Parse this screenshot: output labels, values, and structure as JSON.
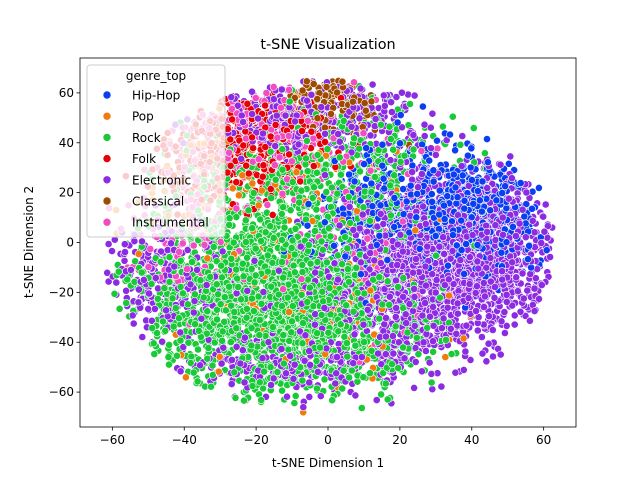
{
  "chart_data": {
    "type": "scatter",
    "title": "t-SNE Visualization",
    "xlabel": "t-SNE Dimension 1",
    "ylabel": "t-SNE Dimension 2",
    "xlim": [
      -69,
      69
    ],
    "ylim": [
      -74,
      74
    ],
    "xticks": [
      -60,
      -40,
      -20,
      0,
      20,
      40,
      60
    ],
    "yticks": [
      -60,
      -40,
      -20,
      0,
      20,
      40,
      60
    ],
    "legend": {
      "title": "genre_top",
      "placement": "top-left",
      "entries": [
        {
          "name": "Hip-Hop",
          "color": "#0b3ef2"
        },
        {
          "name": "Pop",
          "color": "#f07a0a"
        },
        {
          "name": "Rock",
          "color": "#1ac938"
        },
        {
          "name": "Folk",
          "color": "#e6000a"
        },
        {
          "name": "Electronic",
          "color": "#8b2be2"
        },
        {
          "name": "Classical",
          "color": "#9e4a00"
        },
        {
          "name": "Instrumental",
          "color": "#f14cc1"
        }
      ]
    },
    "series": [
      {
        "name": "Hip-Hop",
        "color": "#0b3ef2",
        "clusters": [
          {
            "cx": 40,
            "cy": 10,
            "sx": 9,
            "sy": 11,
            "n": 700
          },
          {
            "cx": 22,
            "cy": 15,
            "sx": 12,
            "sy": 14,
            "n": 250
          },
          {
            "cx": 8,
            "cy": 5,
            "sx": 10,
            "sy": 12,
            "n": 80
          }
        ]
      },
      {
        "name": "Pop",
        "color": "#f07a0a",
        "clusters": [
          {
            "cx": -10,
            "cy": 10,
            "sx": 22,
            "sy": 25,
            "n": 110
          },
          {
            "cx": 10,
            "cy": -20,
            "sx": 20,
            "sy": 20,
            "n": 70
          },
          {
            "cx": -35,
            "cy": 30,
            "sx": 10,
            "sy": 12,
            "n": 50
          }
        ]
      },
      {
        "name": "Rock",
        "color": "#1ac938",
        "clusters": [
          {
            "cx": -20,
            "cy": -25,
            "sx": 17,
            "sy": 17,
            "n": 1500
          },
          {
            "cx": 5,
            "cy": -35,
            "sx": 13,
            "sy": 13,
            "n": 500
          },
          {
            "cx": -15,
            "cy": 10,
            "sx": 16,
            "sy": 18,
            "n": 500
          },
          {
            "cx": 8,
            "cy": 30,
            "sx": 14,
            "sy": 15,
            "n": 300
          }
        ]
      },
      {
        "name": "Folk",
        "color": "#e6000a",
        "clusters": [
          {
            "cx": -28,
            "cy": 35,
            "sx": 10,
            "sy": 10,
            "n": 300
          },
          {
            "cx": -15,
            "cy": 45,
            "sx": 10,
            "sy": 8,
            "n": 150
          }
        ]
      },
      {
        "name": "Electronic",
        "color": "#8b2be2",
        "clusters": [
          {
            "cx": 35,
            "cy": -5,
            "sx": 14,
            "sy": 16,
            "n": 1600
          },
          {
            "cx": 15,
            "cy": -25,
            "sx": 15,
            "sy": 15,
            "n": 600
          },
          {
            "cx": -5,
            "cy": 50,
            "sx": 15,
            "sy": 8,
            "n": 400
          },
          {
            "cx": -45,
            "cy": -15,
            "sx": 10,
            "sy": 12,
            "n": 250
          },
          {
            "cx": -15,
            "cy": -50,
            "sx": 15,
            "sy": 6,
            "n": 200
          }
        ]
      },
      {
        "name": "Classical",
        "color": "#9e4a00",
        "clusters": [
          {
            "cx": 0,
            "cy": 58,
            "sx": 6,
            "sy": 6,
            "n": 120
          },
          {
            "cx": 8,
            "cy": 50,
            "sx": 5,
            "sy": 5,
            "n": 30
          }
        ]
      },
      {
        "name": "Instrumental",
        "color": "#f14cc1",
        "clusters": [
          {
            "cx": -25,
            "cy": 45,
            "sx": 12,
            "sy": 10,
            "n": 200
          },
          {
            "cx": -40,
            "cy": 5,
            "sx": 10,
            "sy": 15,
            "n": 120
          },
          {
            "cx": 5,
            "cy": 10,
            "sx": 20,
            "sy": 25,
            "n": 100
          }
        ]
      }
    ]
  }
}
